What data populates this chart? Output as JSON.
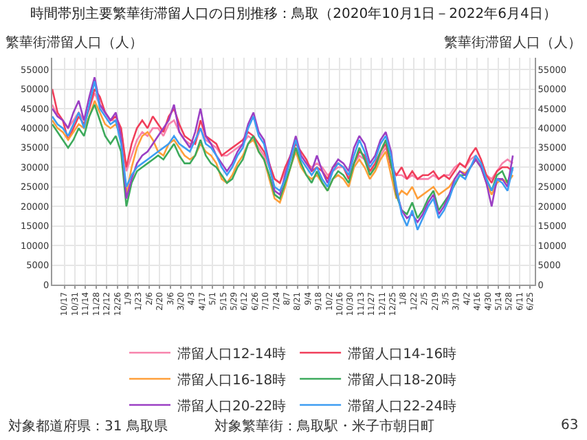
{
  "chart_data": {
    "type": "line",
    "title": "時間帯別主要繁華街滞留人口の日別推移：鳥取（2020年10月1日－2022年6月4日）",
    "ylabel": "繁華街滞留人口（人）",
    "y2label": "繁華街滞留人口（人）",
    "x": [
      "2020-10-01",
      "2020-10-08",
      "2020-10-15",
      "2020-10-22",
      "2020-10-29",
      "2020-11-05",
      "2020-11-12",
      "2020-11-19",
      "2020-11-26",
      "2020-12-03",
      "2020-12-10",
      "2020-12-17",
      "2020-12-24",
      "2020-12-31",
      "2021-01-07",
      "2021-01-14",
      "2021-01-21",
      "2021-01-28",
      "2021-02-04",
      "2021-02-11",
      "2021-02-18",
      "2021-02-25",
      "2021-03-04",
      "2021-03-11",
      "2021-03-18",
      "2021-03-25",
      "2021-04-01",
      "2021-04-08",
      "2021-04-15",
      "2021-04-22",
      "2021-04-29",
      "2021-05-06",
      "2021-05-13",
      "2021-05-20",
      "2021-05-27",
      "2021-06-03",
      "2021-06-10",
      "2021-06-17",
      "2021-06-24",
      "2021-07-01",
      "2021-07-08",
      "2021-07-15",
      "2021-07-22",
      "2021-07-29",
      "2021-08-05",
      "2021-08-12",
      "2021-08-19",
      "2021-08-26",
      "2021-09-02",
      "2021-09-09",
      "2021-09-16",
      "2021-09-23",
      "2021-09-30",
      "2021-10-07",
      "2021-10-14",
      "2021-10-21",
      "2021-10-28",
      "2021-11-04",
      "2021-11-11",
      "2021-11-18",
      "2021-11-25",
      "2021-12-02",
      "2021-12-09",
      "2021-12-16",
      "2021-12-23",
      "2021-12-30",
      "2022-01-06",
      "2022-01-13",
      "2022-01-20",
      "2022-01-27",
      "2022-02-03",
      "2022-02-10",
      "2022-02-17",
      "2022-02-24",
      "2022-03-03",
      "2022-03-10",
      "2022-03-17",
      "2022-03-24",
      "2022-03-31",
      "2022-04-07",
      "2022-04-14",
      "2022-04-21",
      "2022-04-28",
      "2022-05-05",
      "2022-05-12",
      "2022-05-19",
      "2022-05-26",
      "2022-06-02"
    ],
    "series": [
      {
        "name": "滞留人口12-14時",
        "color": "#f783ac",
        "values": [
          46000,
          43000,
          42000,
          40000,
          42000,
          44000,
          42000,
          45000,
          49000,
          46000,
          44000,
          42000,
          42000,
          40000,
          29000,
          33000,
          37000,
          39000,
          38000,
          40000,
          40000,
          38000,
          41000,
          42000,
          39000,
          37000,
          36000,
          36000,
          40000,
          37000,
          36000,
          35000,
          33000,
          33000,
          34000,
          35000,
          36000,
          38000,
          37000,
          35000,
          33000,
          30000,
          27000,
          26000,
          29000,
          32000,
          35000,
          33000,
          31000,
          30000,
          31000,
          30000,
          28000,
          29000,
          30000,
          30000,
          28000,
          31000,
          33000,
          32000,
          29000,
          30000,
          33000,
          35000,
          31000,
          28000,
          28000,
          27000,
          28000,
          27000,
          27000,
          27000,
          28000,
          27000,
          28000,
          28000,
          30000,
          31000,
          30000,
          32000,
          33000,
          31000,
          28000,
          27000,
          29000,
          31000,
          32000,
          31000
        ]
      },
      {
        "name": "滞留人口14-16時",
        "color": "#f03e5a",
        "values": [
          50000,
          44000,
          42000,
          37000,
          40000,
          43000,
          41000,
          45000,
          50000,
          48000,
          44000,
          42000,
          43000,
          40000,
          30000,
          36000,
          40000,
          42000,
          40000,
          43000,
          41000,
          39000,
          43000,
          45000,
          41000,
          38000,
          37000,
          36000,
          42000,
          38000,
          37000,
          36000,
          33000,
          34000,
          35000,
          36000,
          37000,
          39000,
          38000,
          36000,
          34000,
          31000,
          27000,
          26000,
          30000,
          33000,
          36000,
          34000,
          32000,
          29000,
          30000,
          29000,
          27000,
          30000,
          31000,
          30000,
          27000,
          31000,
          34000,
          33000,
          29000,
          31000,
          34000,
          36000,
          30000,
          28000,
          30000,
          27000,
          29000,
          27000,
          28000,
          28000,
          29000,
          27000,
          28000,
          27000,
          29000,
          31000,
          30000,
          33000,
          35000,
          32000,
          28000,
          26000,
          29000,
          30000,
          30000,
          29000
        ]
      },
      {
        "name": "滞留人口16-18時",
        "color": "#ff9f3a",
        "values": [
          42000,
          40000,
          39000,
          37000,
          39000,
          41000,
          40000,
          43000,
          47000,
          44000,
          41000,
          40000,
          41000,
          38000,
          23000,
          30000,
          35000,
          38000,
          39000,
          37000,
          34000,
          33000,
          36000,
          37000,
          35000,
          33000,
          32000,
          33000,
          36000,
          34000,
          33000,
          31000,
          27000,
          26000,
          28000,
          31000,
          33000,
          36000,
          37000,
          34000,
          32000,
          27000,
          22000,
          21000,
          25000,
          30000,
          34000,
          30000,
          28000,
          27000,
          28000,
          26000,
          24000,
          27000,
          28000,
          27000,
          25000,
          30000,
          32000,
          30000,
          27000,
          29000,
          32000,
          34000,
          28000,
          22000,
          24000,
          23000,
          25000,
          22000,
          23000,
          24000,
          25000,
          23000,
          24000,
          25000,
          27000,
          29000,
          28500,
          30000,
          32000,
          30000,
          26000,
          23000,
          26000,
          27000,
          26000,
          28000
        ]
      },
      {
        "name": "滞留人口18-20時",
        "color": "#3daa5c",
        "values": [
          41000,
          39000,
          37000,
          35000,
          37000,
          40000,
          38000,
          43000,
          46000,
          42000,
          38000,
          36000,
          38000,
          34000,
          20000,
          26000,
          29000,
          30000,
          31000,
          32000,
          33000,
          32000,
          34000,
          36000,
          33000,
          31000,
          31000,
          33000,
          37000,
          33000,
          31000,
          30000,
          28000,
          26000,
          27000,
          30000,
          32000,
          36000,
          38000,
          34000,
          32000,
          28000,
          23000,
          22000,
          26000,
          30000,
          35000,
          31000,
          28000,
          26000,
          29000,
          26000,
          24000,
          27000,
          29000,
          28000,
          26000,
          31000,
          35000,
          32000,
          28000,
          30000,
          34000,
          37000,
          31000,
          23000,
          19000,
          18000,
          21000,
          17000,
          19000,
          22000,
          24000,
          19000,
          21000,
          23000,
          25500,
          28000,
          28000,
          30000,
          32000,
          30000,
          27000,
          24000,
          28000,
          29000,
          26000,
          30000
        ]
      },
      {
        "name": "滞留人口20-22時",
        "color": "#9b3fc4",
        "values": [
          45000,
          43000,
          42000,
          40000,
          44000,
          47000,
          42000,
          48000,
          53000,
          46000,
          44000,
          42000,
          44000,
          38000,
          22000,
          27000,
          31000,
          33000,
          34000,
          36000,
          38000,
          40000,
          42000,
          46000,
          39000,
          37000,
          35000,
          39000,
          45000,
          38000,
          36000,
          33000,
          31000,
          29000,
          31000,
          34000,
          36000,
          41000,
          44000,
          39000,
          37000,
          31000,
          24000,
          23000,
          28000,
          33000,
          38000,
          33000,
          31000,
          29000,
          33000,
          29000,
          26000,
          30000,
          32000,
          31000,
          29000,
          35000,
          38000,
          36000,
          31000,
          33000,
          37000,
          39000,
          34000,
          24000,
          19000,
          17000,
          18000,
          16000,
          18000,
          21000,
          23000,
          18000,
          20000,
          23000,
          27000,
          29000,
          28000,
          30000,
          32000,
          30000,
          26000,
          20000,
          27000,
          27000,
          25000,
          33000
        ]
      },
      {
        "name": "滞留人口22-24時",
        "color": "#3d9df2",
        "values": [
          43000,
          41000,
          40000,
          38000,
          41000,
          44000,
          40000,
          46000,
          52000,
          45000,
          43000,
          41000,
          42000,
          36000,
          25000,
          28000,
          30000,
          31000,
          32000,
          33000,
          34000,
          35000,
          36000,
          38000,
          36000,
          35000,
          34000,
          37000,
          40000,
          36000,
          35000,
          33000,
          30000,
          28000,
          30000,
          33000,
          35000,
          40000,
          43000,
          38000,
          36000,
          30000,
          25000,
          24000,
          27000,
          32000,
          37000,
          32000,
          30000,
          28000,
          30000,
          27000,
          25000,
          29000,
          31000,
          30000,
          28000,
          33000,
          37000,
          34000,
          30000,
          32000,
          36000,
          38000,
          33000,
          25000,
          18000,
          15000,
          19000,
          14000,
          17000,
          20000,
          22000,
          17000,
          19000,
          22000,
          26000,
          28000,
          27000,
          30000,
          33000,
          31000,
          27000,
          24000,
          27000,
          26000,
          24000,
          30000
        ]
      }
    ],
    "xlim": [
      "2020-10-01",
      "2022-07-01"
    ],
    "xticks": [
      {
        "value": "2020-10-17",
        "label": "10/17"
      },
      {
        "value": "2020-10-31",
        "label": "10/31"
      },
      {
        "value": "2020-11-14",
        "label": "11/14"
      },
      {
        "value": "2020-11-28",
        "label": "11/28"
      },
      {
        "value": "2020-12-12",
        "label": "12/12"
      },
      {
        "value": "2020-12-26",
        "label": "12/26"
      },
      {
        "value": "2021-01-09",
        "label": "1/9"
      },
      {
        "value": "2021-01-23",
        "label": "1/23"
      },
      {
        "value": "2021-02-06",
        "label": "2/6"
      },
      {
        "value": "2021-02-20",
        "label": "2/20"
      },
      {
        "value": "2021-03-06",
        "label": "3/6"
      },
      {
        "value": "2021-03-20",
        "label": "3/20"
      },
      {
        "value": "2021-04-03",
        "label": "4/3"
      },
      {
        "value": "2021-04-17",
        "label": "4/17"
      },
      {
        "value": "2021-05-01",
        "label": "5/1"
      },
      {
        "value": "2021-05-15",
        "label": "5/15"
      },
      {
        "value": "2021-05-29",
        "label": "5/29"
      },
      {
        "value": "2021-06-12",
        "label": "6/12"
      },
      {
        "value": "2021-06-26",
        "label": "6/26"
      },
      {
        "value": "2021-07-10",
        "label": "7/10"
      },
      {
        "value": "2021-07-24",
        "label": "7/24"
      },
      {
        "value": "2021-08-07",
        "label": "8/7"
      },
      {
        "value": "2021-08-21",
        "label": "8/21"
      },
      {
        "value": "2021-09-04",
        "label": "9/4"
      },
      {
        "value": "2021-09-18",
        "label": "9/18"
      },
      {
        "value": "2021-10-02",
        "label": "10/2"
      },
      {
        "value": "2021-10-16",
        "label": "10/16"
      },
      {
        "value": "2021-10-30",
        "label": "10/30"
      },
      {
        "value": "2021-11-13",
        "label": "11/13"
      },
      {
        "value": "2021-11-27",
        "label": "11/27"
      },
      {
        "value": "2021-12-11",
        "label": "12/11"
      },
      {
        "value": "2021-12-25",
        "label": "12/25"
      },
      {
        "value": "2022-01-08",
        "label": "1/8"
      },
      {
        "value": "2022-01-22",
        "label": "1/22"
      },
      {
        "value": "2022-02-05",
        "label": "2/5"
      },
      {
        "value": "2022-02-19",
        "label": "2/19"
      },
      {
        "value": "2022-03-05",
        "label": "3/5"
      },
      {
        "value": "2022-03-19",
        "label": "3/19"
      },
      {
        "value": "2022-04-02",
        "label": "4/2"
      },
      {
        "value": "2022-04-16",
        "label": "4/16"
      },
      {
        "value": "2022-04-30",
        "label": "4/30"
      },
      {
        "value": "2022-05-14",
        "label": "5/14"
      },
      {
        "value": "2022-05-28",
        "label": "5/28"
      },
      {
        "value": "2022-06-11",
        "label": "6/11"
      },
      {
        "value": "2022-06-25",
        "label": "6/25"
      }
    ],
    "ylim": [
      0,
      58000
    ],
    "yticks": [
      0,
      5000,
      10000,
      15000,
      20000,
      25000,
      30000,
      35000,
      40000,
      45000,
      50000,
      55000
    ],
    "y2lim": [
      0,
      58000
    ],
    "y2ticks": [
      0,
      5000,
      10000,
      15000,
      20000,
      25000,
      30000,
      35000,
      40000,
      45000,
      50000,
      55000
    ],
    "grid": true,
    "legend": "bottom",
    "marker": "none",
    "line_style": "solid",
    "annotations": [
      "対象都道府県：31 鳥取県",
      "対象繁華街：鳥取駅・米子市朝日町",
      "63"
    ]
  }
}
